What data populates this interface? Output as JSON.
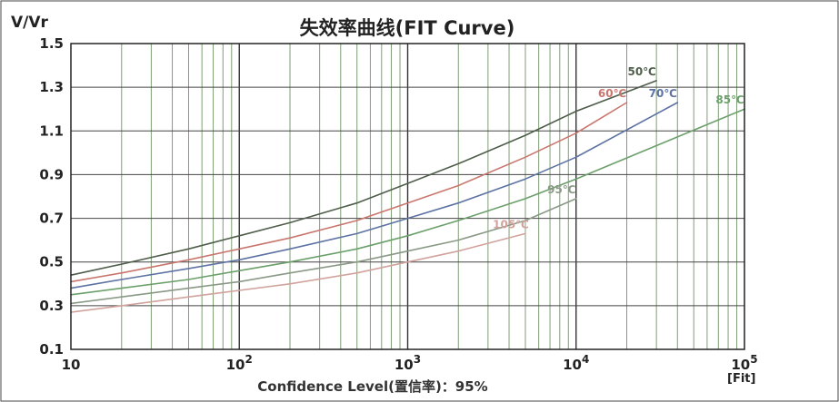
{
  "chart_data": {
    "type": "line",
    "title": "失效率曲线(FIT Curve)",
    "ylabel": "V/Vr",
    "xlabel": "Confidence Level(置信率)：95%",
    "x_unit": "[Fit]",
    "x_scale": "log",
    "xlim": [
      10,
      100000
    ],
    "ylim": [
      0.1,
      1.5
    ],
    "grid": true,
    "x_ticks": [
      {
        "value": 10,
        "base": "10",
        "exp": ""
      },
      {
        "value": 100,
        "base": "10",
        "exp": "2"
      },
      {
        "value": 1000,
        "base": "10",
        "exp": "3"
      },
      {
        "value": 10000,
        "base": "10",
        "exp": "4"
      },
      {
        "value": 100000,
        "base": "10",
        "exp": "5"
      }
    ],
    "y_ticks": [
      "0.1",
      "0.3",
      "0.5",
      "0.7",
      "0.9",
      "1.1",
      "1.3",
      "1.5"
    ],
    "series": [
      {
        "name": "50℃",
        "color": "#4f5e4a",
        "x": [
          10,
          20,
          50,
          100,
          200,
          500,
          1000,
          2000,
          5000,
          10000,
          30000
        ],
        "y": [
          0.44,
          0.49,
          0.56,
          0.62,
          0.68,
          0.77,
          0.86,
          0.95,
          1.08,
          1.19,
          1.33
        ]
      },
      {
        "name": "60℃",
        "color": "#c9776e",
        "x": [
          10,
          20,
          50,
          100,
          200,
          500,
          1000,
          2000,
          5000,
          10000,
          20000
        ],
        "y": [
          0.41,
          0.45,
          0.51,
          0.56,
          0.61,
          0.69,
          0.77,
          0.85,
          0.98,
          1.09,
          1.23
        ]
      },
      {
        "name": "70℃",
        "color": "#5e73a3",
        "x": [
          10,
          20,
          50,
          100,
          200,
          500,
          1000,
          2000,
          5000,
          10000,
          40000
        ],
        "y": [
          0.38,
          0.42,
          0.47,
          0.51,
          0.56,
          0.63,
          0.7,
          0.77,
          0.88,
          0.98,
          1.23
        ]
      },
      {
        "name": "85℃",
        "color": "#6ba06a",
        "x": [
          10,
          20,
          50,
          100,
          200,
          500,
          1000,
          2000,
          5000,
          10000,
          100000
        ],
        "y": [
          0.35,
          0.38,
          0.42,
          0.46,
          0.5,
          0.56,
          0.62,
          0.69,
          0.79,
          0.88,
          1.2
        ]
      },
      {
        "name": "95℃",
        "color": "#8a9a86",
        "x": [
          10,
          20,
          50,
          100,
          200,
          500,
          1000,
          2000,
          5000,
          10000
        ],
        "y": [
          0.31,
          0.34,
          0.38,
          0.41,
          0.45,
          0.5,
          0.55,
          0.6,
          0.69,
          0.79
        ]
      },
      {
        "name": "105℃",
        "color": "#d1a39d",
        "x": [
          10,
          20,
          50,
          100,
          200,
          500,
          1000,
          2000,
          5000
        ],
        "y": [
          0.27,
          0.3,
          0.34,
          0.37,
          0.4,
          0.45,
          0.5,
          0.55,
          0.63
        ]
      }
    ]
  }
}
